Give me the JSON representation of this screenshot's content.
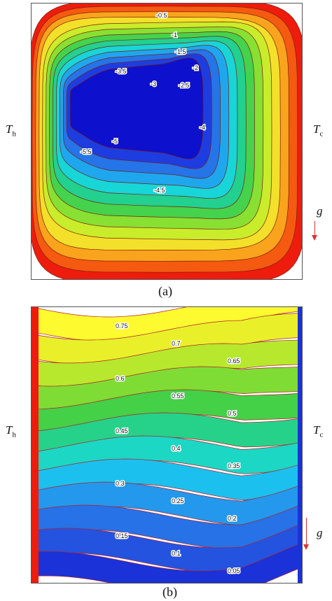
{
  "labels": {
    "hot_side": "T",
    "hot_sub": "h",
    "cold_side": "T",
    "cold_sub": "c",
    "gravity": "g",
    "caption_a": "(a)",
    "caption_b": "(b)"
  },
  "panel_a": {
    "colors": [
      "#ee1c0c",
      "#f45a10",
      "#f9a41c",
      "#f3e02a",
      "#c9ec2b",
      "#88e033",
      "#45d24c",
      "#22d08f",
      "#18d5d8",
      "#1ea7ee",
      "#2574e8",
      "#1e3de0",
      "#0d10cc"
    ],
    "contour_labels": [
      "-0.5",
      "-1",
      "-1.5",
      "-2",
      "-2.5",
      "-3",
      "-3.5",
      "-4",
      "-4.5",
      "-5",
      "-5.5"
    ]
  },
  "panel_b": {
    "colors": [
      "#fdfa2f",
      "#e9f02a",
      "#b7e82d",
      "#7edc34",
      "#44d047",
      "#26d28a",
      "#1bd7c4",
      "#1cc0ee",
      "#2398ec",
      "#2672e6",
      "#2453e0",
      "#1a32d8"
    ],
    "contour_labels": [
      "0.75",
      "0.7",
      "0.65",
      "0.6",
      "0.55",
      "0.5",
      "0.45",
      "0.4",
      "0.35",
      "0.3",
      "0.25",
      "0.2",
      "0.15",
      "0.1",
      "0.05"
    ]
  }
}
